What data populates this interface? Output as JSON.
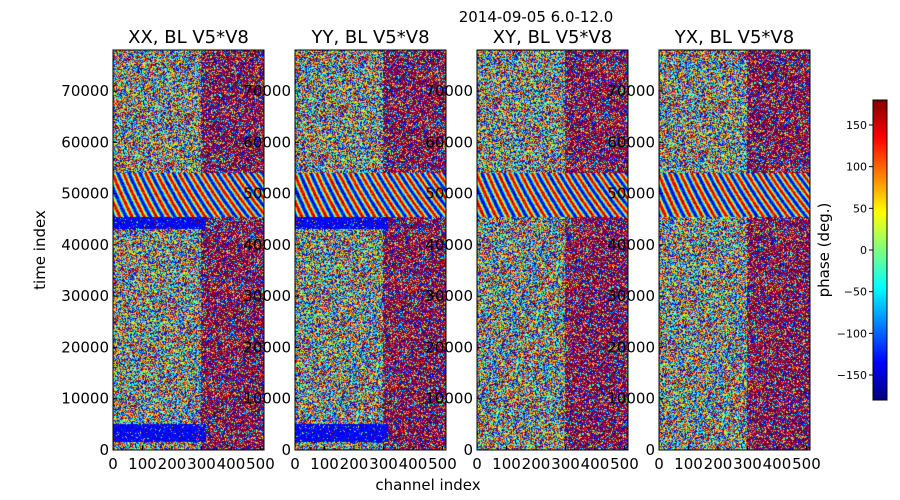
{
  "figure": {
    "suptitle": "2014-09-05 6.0-12.0",
    "xlabel": "channel index",
    "ylabel": "time index"
  },
  "colorbar": {
    "label": "phase (deg.)",
    "ticks": [
      -150,
      -100,
      -50,
      0,
      50,
      100,
      150
    ],
    "tick_labels": [
      "−150",
      "−100",
      "−50",
      "0",
      "50",
      "100",
      "150"
    ],
    "range": [
      -180,
      180
    ],
    "colormap": "jet"
  },
  "chart_data": [
    {
      "type": "heatmap",
      "title": "XX, BL V5*V8",
      "xlim": [
        0,
        512
      ],
      "ylim": [
        0,
        78000
      ],
      "x_tick_labels": [
        "0",
        "100",
        "200",
        "300",
        "400",
        "500"
      ],
      "y_tick_labels": [
        "0",
        "10000",
        "20000",
        "30000",
        "40000",
        "50000",
        "60000",
        "70000"
      ],
      "value": "phase (deg.)",
      "features": [
        "low-phase band 1500-5000",
        "low-phase band 43000-45500",
        "fringe band 45500-54000"
      ]
    },
    {
      "type": "heatmap",
      "title": "YY, BL V5*V8",
      "xlim": [
        0,
        512
      ],
      "ylim": [
        0,
        78000
      ],
      "x_tick_labels": [
        "0",
        "100",
        "200",
        "300",
        "400",
        "500"
      ],
      "y_tick_labels": [
        "0",
        "10000",
        "20000",
        "30000",
        "40000",
        "50000",
        "60000",
        "70000"
      ],
      "value": "phase (deg.)",
      "features": [
        "low-phase band 1500-5000",
        "low-phase band 43000-45500",
        "fringe band 45500-54000"
      ]
    },
    {
      "type": "heatmap",
      "title": "XY, BL V5*V8",
      "xlim": [
        0,
        512
      ],
      "ylim": [
        0,
        78000
      ],
      "x_tick_labels": [
        "0",
        "100",
        "200",
        "300",
        "400",
        "500"
      ],
      "y_tick_labels": [
        "0",
        "10000",
        "20000",
        "30000",
        "40000",
        "50000",
        "60000",
        "70000"
      ],
      "value": "phase (deg.)",
      "features": [
        "fringe band 45500-54000"
      ]
    },
    {
      "type": "heatmap",
      "title": "YX, BL V5*V8",
      "xlim": [
        0,
        512
      ],
      "ylim": [
        0,
        78000
      ],
      "x_tick_labels": [
        "0",
        "100",
        "200",
        "300",
        "400",
        "500"
      ],
      "y_tick_labels": [
        "0",
        "10000",
        "20000",
        "30000",
        "40000",
        "50000",
        "60000",
        "70000"
      ],
      "value": "phase (deg.)",
      "features": [
        "fringe band 45500-54000"
      ]
    }
  ]
}
